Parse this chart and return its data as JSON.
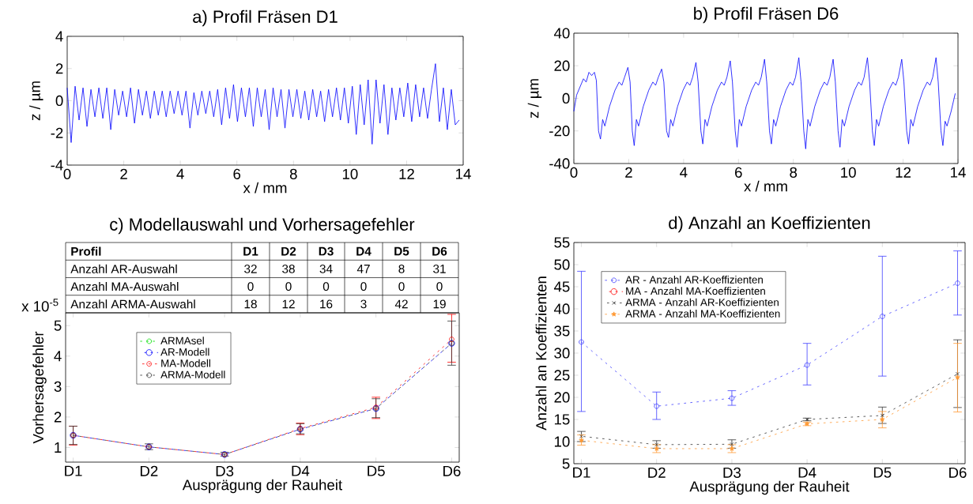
{
  "chart_data": [
    {
      "type": "line",
      "title": "a) Profil Fräsen D1",
      "xlabel": "x / mm",
      "ylabel": "z / µm",
      "xlim": [
        0,
        14
      ],
      "xticks": [
        0,
        2,
        4,
        6,
        8,
        10,
        12,
        14
      ],
      "ylim": [
        -4,
        4
      ],
      "yticks": [
        -4,
        -2,
        0,
        2,
        4
      ],
      "x": [
        0,
        0.14,
        0.28,
        0.42,
        0.56,
        0.7,
        0.84,
        0.98,
        1.12,
        1.26,
        1.4,
        1.54,
        1.68,
        1.82,
        1.96,
        2.1,
        2.24,
        2.38,
        2.52,
        2.66,
        2.8,
        2.94,
        3.08,
        3.22,
        3.36,
        3.5,
        3.64,
        3.78,
        3.92,
        4.06,
        4.2,
        4.34,
        4.48,
        4.62,
        4.76,
        4.9,
        5.04,
        5.18,
        5.32,
        5.46,
        5.6,
        5.74,
        5.88,
        6.02,
        6.16,
        6.3,
        6.44,
        6.58,
        6.72,
        6.86,
        7,
        7.14,
        7.28,
        7.42,
        7.56,
        7.7,
        7.84,
        7.98,
        8.12,
        8.26,
        8.4,
        8.54,
        8.68,
        8.82,
        8.96,
        9.1,
        9.24,
        9.38,
        9.52,
        9.66,
        9.8,
        9.94,
        10.08,
        10.22,
        10.36,
        10.5,
        10.64,
        10.78,
        10.92,
        11.06,
        11.2,
        11.34,
        11.48,
        11.62,
        11.76,
        11.9,
        12.04,
        12.18,
        12.32,
        12.46,
        12.6,
        12.74,
        12.88,
        13.02,
        13.16,
        13.3,
        13.44,
        13.58,
        13.72,
        13.86
      ],
      "series": [
        {
          "color": "#0000ff",
          "values": [
            0.8,
            -2.6,
            0.9,
            -1.2,
            0.8,
            -1.6,
            0.7,
            -1.0,
            0.8,
            -1.1,
            0.8,
            -1.8,
            0.7,
            -0.9,
            0.6,
            -1.0,
            0.8,
            -1.4,
            0.7,
            -0.9,
            0.6,
            -1.1,
            0.6,
            -0.9,
            0.6,
            -1.0,
            0.6,
            -0.8,
            0.6,
            -0.9,
            0.6,
            -1.7,
            0.5,
            -0.9,
            0.6,
            -0.8,
            0.6,
            -1.0,
            0.7,
            -1.5,
            0.8,
            -1.1,
            1.0,
            -1.3,
            0.8,
            -1.0,
            0.8,
            -1.6,
            0.8,
            -1.0,
            0.7,
            -1.8,
            0.8,
            -1.0,
            0.7,
            -1.7,
            0.7,
            -1.0,
            0.7,
            -1.1,
            0.6,
            -1.2,
            0.7,
            -1.0,
            0.6,
            -1.3,
            0.7,
            -1.0,
            0.8,
            -1.2,
            0.8,
            -1.4,
            0.9,
            -2.1,
            1.0,
            -1.5,
            1.3,
            -2.7,
            1.3,
            -1.4,
            1.0,
            -2.1,
            0.8,
            -1.2,
            0.8,
            -1.0,
            1.1,
            -1.3,
            1.0,
            -1.0,
            0.8,
            -1.1,
            0.7,
            2.3,
            -1.3,
            0.8,
            -1.8,
            0.7,
            -1.5,
            -1.2
          ]
        }
      ]
    },
    {
      "type": "line",
      "title": "b) Profil Fräsen D6",
      "xlabel": "x / mm",
      "ylabel": "z / µm",
      "xlim": [
        0,
        14
      ],
      "xticks": [
        0,
        2,
        4,
        6,
        8,
        10,
        12,
        14
      ],
      "ylim": [
        -40,
        40
      ],
      "yticks": [
        -40,
        -20,
        0,
        20,
        40
      ],
      "x": [
        0,
        0.1,
        0.25,
        0.35,
        0.45,
        0.55,
        0.65,
        0.75,
        0.82,
        0.9,
        0.97,
        1.05,
        1.13,
        1.3,
        1.5,
        1.65,
        1.75,
        1.85,
        1.97,
        2.05,
        2.13,
        2.2,
        2.28,
        2.36,
        2.53,
        2.73,
        2.88,
        2.98,
        3.08,
        3.2,
        3.28,
        3.38,
        3.45,
        3.53,
        3.61,
        3.78,
        3.98,
        4.13,
        4.23,
        4.33,
        4.45,
        4.53,
        4.63,
        4.7,
        4.78,
        4.86,
        5.03,
        5.23,
        5.38,
        5.48,
        5.58,
        5.7,
        5.78,
        5.88,
        5.95,
        6.03,
        6.11,
        6.28,
        6.48,
        6.63,
        6.73,
        6.83,
        6.95,
        7.03,
        7.13,
        7.2,
        7.28,
        7.36,
        7.53,
        7.73,
        7.88,
        7.98,
        8.08,
        8.2,
        8.28,
        8.38,
        8.45,
        8.53,
        8.61,
        8.78,
        8.98,
        9.13,
        9.23,
        9.33,
        9.45,
        9.53,
        9.63,
        9.7,
        9.78,
        9.86,
        10.03,
        10.23,
        10.38,
        10.48,
        10.58,
        10.7,
        10.78,
        10.88,
        10.95,
        11.03,
        11.11,
        11.28,
        11.48,
        11.63,
        11.73,
        11.83,
        11.95,
        12.03,
        12.13,
        12.2,
        12.28,
        12.36,
        12.53,
        12.73,
        12.88,
        12.98,
        13.08,
        13.2,
        13.28,
        13.38,
        13.45,
        13.53,
        13.6,
        13.75,
        13.9
      ],
      "series": [
        {
          "color": "#0000ff",
          "values": [
            -8,
            2,
            8,
            12,
            10,
            16,
            14,
            16,
            11,
            -20,
            -25,
            -13,
            -17,
            -5,
            5,
            10,
            8,
            13,
            19,
            10,
            -20,
            -29,
            -13,
            -17,
            -5,
            5,
            10,
            8,
            13,
            18,
            10,
            -20,
            -24,
            -13,
            -17,
            -5,
            5,
            10,
            8,
            13,
            22,
            10,
            -20,
            -28,
            -13,
            -17,
            -5,
            5,
            10,
            8,
            13,
            23,
            10,
            -20,
            -30,
            -13,
            -17,
            -5,
            5,
            10,
            8,
            13,
            24,
            10,
            -20,
            -28,
            -13,
            -17,
            -5,
            5,
            10,
            8,
            13,
            25,
            10,
            -20,
            -31,
            -13,
            -17,
            -5,
            5,
            10,
            8,
            13,
            24,
            10,
            -20,
            -30,
            -13,
            -17,
            -5,
            5,
            10,
            8,
            13,
            25,
            10,
            -20,
            -29,
            -13,
            -17,
            -5,
            5,
            10,
            8,
            13,
            24,
            10,
            -20,
            -28,
            -13,
            -17,
            -5,
            5,
            10,
            8,
            13,
            25,
            10,
            -20,
            -29,
            -14,
            -17,
            -8,
            3
          ]
        }
      ]
    },
    {
      "type": "heatmap",
      "title": "c) Modellauswahl und Vorhersagefehler",
      "annotations": [
        "Profil"
      ],
      "categories": [
        "D1",
        "D2",
        "D3",
        "D4",
        "D5",
        "D6"
      ],
      "y_categories": [
        "Anzahl AR-Auswahl",
        "Anzahl MA-Auswahl",
        "Anzahl ARMA-Auswahl"
      ],
      "cells": [
        [
          32,
          38,
          34,
          47,
          8,
          31
        ],
        [
          0,
          0,
          0,
          0,
          0,
          0
        ],
        [
          18,
          12,
          16,
          3,
          42,
          19
        ]
      ],
      "data_labels": true
    },
    {
      "type": "line",
      "xlabel": "Ausprägung der Rauheit",
      "ylabel": "Vorhersagefehler",
      "annotations": [
        "x 10$^{-5}$"
      ],
      "categories": [
        "D1",
        "D2",
        "D3",
        "D4",
        "D5",
        "D6"
      ],
      "ylim": [
        0.52,
        5.42
      ],
      "yticks": [
        1,
        2,
        3,
        4,
        5
      ],
      "legend": "top left",
      "line_style": "dashed",
      "series": [
        {
          "name": "ARMAsel",
          "color": "#00e000",
          "marker": "circle",
          "values": [
            null,
            null,
            null,
            null,
            null,
            null
          ]
        },
        {
          "name": "AR-Modell",
          "color": "#0000ff",
          "marker": "circle",
          "values": [
            1.4,
            1.02,
            0.77,
            1.6,
            2.28,
            4.42
          ]
        },
        {
          "name": "MA-Modell",
          "color": "#ff0000",
          "marker": "circle",
          "values": [
            1.4,
            1.02,
            0.77,
            1.62,
            2.32,
            4.55
          ],
          "errors": [
            [
              1.08,
              1.7
            ],
            null,
            null,
            [
              1.42,
              1.8
            ],
            [
              1.95,
              2.65
            ],
            [
              3.8,
              5.37
            ]
          ]
        },
        {
          "name": "ARMA-Modell",
          "color": "#333333",
          "marker": "circle",
          "values": [
            1.4,
            1.02,
            0.77,
            1.6,
            2.28,
            4.42
          ],
          "errors": [
            [
              1.1,
              1.7
            ],
            [
              0.93,
              1.12
            ],
            [
              0.72,
              0.845
            ],
            [
              1.45,
              1.78
            ],
            [
              1.98,
              2.6
            ],
            [
              3.7,
              5.15
            ]
          ]
        }
      ]
    },
    {
      "type": "line",
      "title": "d) Anzahl an Koeffizienten",
      "xlabel": "Ausprägung der Rauheit",
      "ylabel": "Anzahl an Koeffizienten",
      "categories": [
        "D1",
        "D2",
        "D3",
        "D4",
        "D5",
        "D6"
      ],
      "ylim": [
        5,
        55
      ],
      "yticks": [
        5,
        10,
        15,
        20,
        25,
        30,
        35,
        40,
        45,
        50,
        55
      ],
      "legend": "top left",
      "line_style": "dashed",
      "series": [
        {
          "name": "AR - Anzahl AR-Koeffizienten",
          "color": "#4040ff",
          "marker": "circle",
          "values": [
            32.5,
            18,
            19.8,
            27.3,
            38.3,
            45.8
          ],
          "errors": [
            [
              16.8,
              48.5
            ],
            [
              15,
              21.2
            ],
            [
              18.2,
              21.5
            ],
            [
              22.8,
              32.2
            ],
            [
              24.8,
              51.9
            ],
            [
              38.6,
              53.1
            ]
          ]
        },
        {
          "name": "MA - Anzahl MA-Koeffizienten",
          "color": "#ff0000",
          "marker": "circle",
          "values": [
            null,
            null,
            null,
            null,
            null,
            null
          ]
        },
        {
          "name": "ARMA - Anzahl AR-Koeffizienten",
          "color": "#333333",
          "marker": "cross",
          "values": [
            11.2,
            9.3,
            9.4,
            15,
            15.9,
            25.3
          ],
          "errors": [
            [
              10,
              12.3
            ],
            [
              8.5,
              10.2
            ],
            [
              8.5,
              10.4
            ],
            [
              14.7,
              15.3
            ],
            [
              14.1,
              17.8
            ],
            [
              17.7,
              33
            ]
          ]
        },
        {
          "name": "ARMA - Anzahl MA-Koeffizienten",
          "color": "#ff9933",
          "marker": "star",
          "values": [
            10.3,
            8.4,
            8.4,
            14,
            15,
            24.5
          ],
          "errors": [
            [
              9.2,
              11.5
            ],
            [
              7.5,
              9.3
            ],
            [
              7.5,
              9.3
            ],
            [
              13.6,
              14.4
            ],
            [
              13.1,
              16.8
            ],
            [
              16.7,
              32.2
            ]
          ]
        }
      ]
    }
  ]
}
